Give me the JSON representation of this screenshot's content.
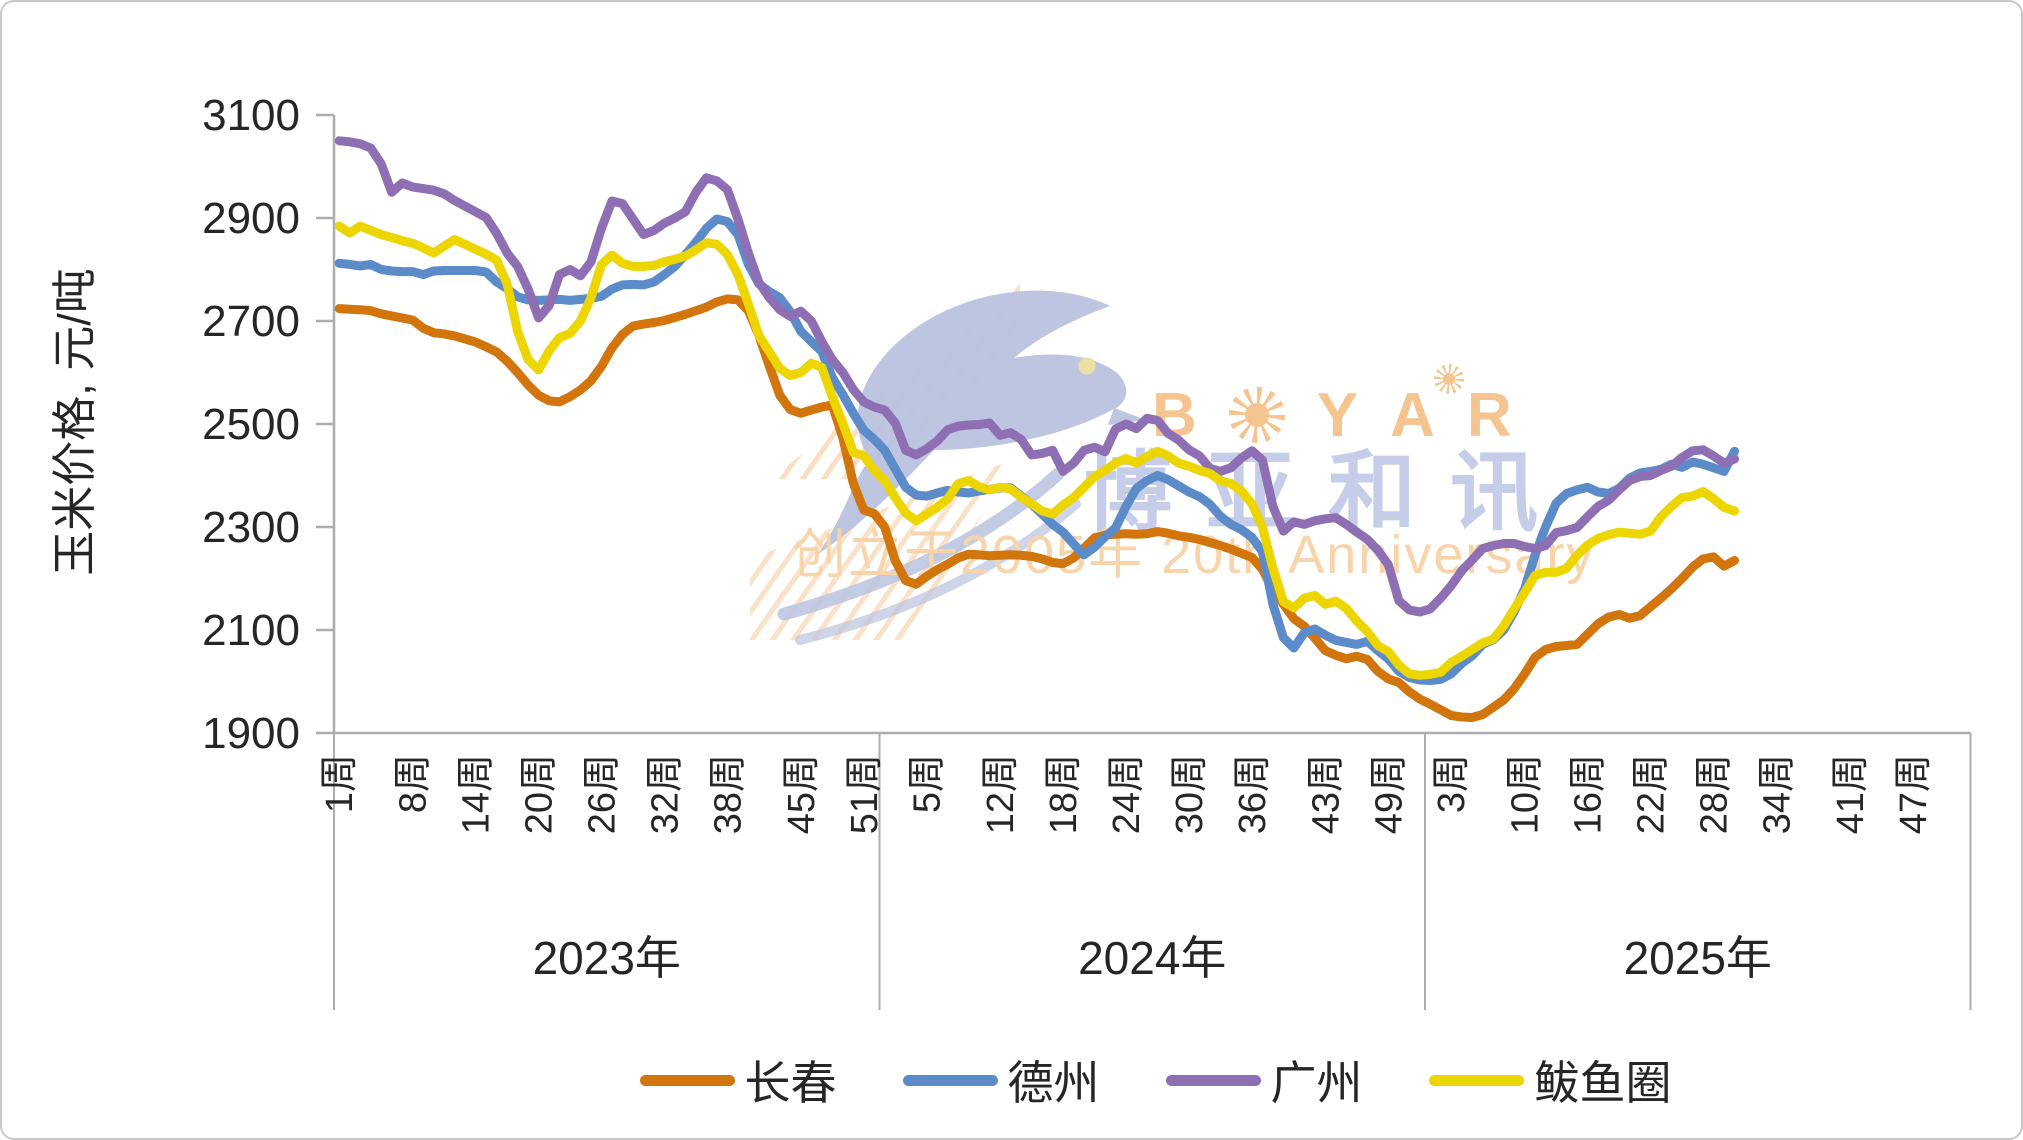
{
  "watermark": {
    "brand_first_letter": "B",
    "brand_rest_letters": [
      "Y",
      "A",
      "R"
    ],
    "brand": "BOYAR",
    "brand_cn": "博亚和讯",
    "tagline": "创立于2005年 20th Anniversary",
    "brand_color": "#f6c48f",
    "brand_cn_color": "#c6cde8",
    "tagline_color": "#f8d4ab",
    "bird_color": "#b9c2df"
  },
  "chart_data": {
    "type": "line",
    "title": "",
    "ylabel": "玉米价格, 元/吨",
    "xlabel": "",
    "ylim": [
      1900,
      3100
    ],
    "yticks": [
      1900,
      2100,
      2300,
      2500,
      2700,
      2900,
      3100
    ],
    "grid": false,
    "legend_position": "bottom",
    "week_label_suffix": "周",
    "x_groups": [
      {
        "year": "2023年",
        "weeks": 52,
        "tick_weeks": [
          1,
          8,
          14,
          20,
          26,
          32,
          38,
          45,
          51
        ]
      },
      {
        "year": "2024年",
        "weeks": 52,
        "tick_weeks": [
          5,
          12,
          18,
          24,
          30,
          36,
          43,
          49
        ]
      },
      {
        "year": "2025年",
        "weeks": 52,
        "tick_weeks": [
          3,
          10,
          16,
          22,
          28,
          34,
          41,
          47
        ]
      }
    ],
    "series": [
      {
        "name": "长春",
        "color": "#D2750C",
        "values": {
          "2023": [
            2724,
            2723,
            2722,
            2720,
            2714,
            2710,
            2706,
            2702,
            2686,
            2677,
            2675,
            2671,
            2665,
            2659,
            2650,
            2640,
            2622,
            2600,
            2576,
            2556,
            2545,
            2543,
            2553,
            2566,
            2584,
            2612,
            2648,
            2674,
            2690,
            2694,
            2697,
            2701,
            2707,
            2713,
            2720,
            2727,
            2737,
            2743,
            2741,
            2720,
            2672,
            2612,
            2556,
            2528,
            2521,
            2527,
            2533,
            2537,
            2473,
            2385,
            2333,
            2326
          ],
          "2024": [
            2300,
            2235,
            2196,
            2189,
            2204,
            2217,
            2228,
            2240,
            2247,
            2246,
            2244,
            2245,
            2246,
            2245,
            2243,
            2238,
            2231,
            2229,
            2240,
            2259,
            2279,
            2284,
            2286,
            2287,
            2286,
            2287,
            2291,
            2288,
            2283,
            2280,
            2276,
            2270,
            2264,
            2257,
            2249,
            2241,
            2218,
            2178,
            2150,
            2122,
            2107,
            2084,
            2060,
            2051,
            2044,
            2049,
            2043,
            2020,
            2005,
            1998,
            1980,
            1966
          ],
          "2025": [
            1956,
            1945,
            1934,
            1931,
            1930,
            1936,
            1950,
            1964,
            1986,
            2015,
            2047,
            2062,
            2068,
            2070,
            2072,
            2092,
            2112,
            2125,
            2130,
            2123,
            2128,
            2145,
            2162,
            2180,
            2200,
            2222,
            2238,
            2242,
            2224,
            2235
          ]
        }
      },
      {
        "name": "德州",
        "color": "#5C8BC9",
        "values": {
          "2023": [
            2812,
            2810,
            2807,
            2810,
            2800,
            2797,
            2796,
            2796,
            2790,
            2797,
            2798,
            2798,
            2798,
            2798,
            2795,
            2776,
            2763,
            2747,
            2741,
            2740,
            2741,
            2742,
            2740,
            2742,
            2744,
            2748,
            2762,
            2770,
            2771,
            2770,
            2776,
            2790,
            2806,
            2829,
            2853,
            2880,
            2898,
            2893,
            2868,
            2810,
            2772,
            2757,
            2745,
            2718,
            2680,
            2660,
            2641,
            2590,
            2557,
            2521,
            2488,
            2470
          ],
          "2024": [
            2449,
            2413,
            2377,
            2362,
            2360,
            2366,
            2371,
            2368,
            2366,
            2370,
            2373,
            2376,
            2376,
            2360,
            2344,
            2325,
            2305,
            2290,
            2267,
            2246,
            2261,
            2281,
            2298,
            2340,
            2375,
            2390,
            2400,
            2392,
            2380,
            2368,
            2359,
            2344,
            2321,
            2305,
            2295,
            2280,
            2252,
            2150,
            2085,
            2065,
            2095,
            2102,
            2090,
            2080,
            2076,
            2072,
            2078,
            2060,
            2044,
            2020,
            2008,
            2003
          ],
          "2025": [
            2002,
            2004,
            2015,
            2035,
            2050,
            2072,
            2081,
            2100,
            2136,
            2180,
            2246,
            2300,
            2346,
            2365,
            2372,
            2377,
            2368,
            2365,
            2375,
            2395,
            2405,
            2408,
            2412,
            2422,
            2416,
            2426,
            2422,
            2415,
            2408,
            2447
          ]
        }
      },
      {
        "name": "广州",
        "color": "#8E6FB4",
        "values": {
          "2023": [
            3050,
            3048,
            3044,
            3036,
            3005,
            2950,
            2968,
            2960,
            2957,
            2954,
            2947,
            2934,
            2923,
            2912,
            2901,
            2870,
            2832,
            2806,
            2762,
            2706,
            2730,
            2790,
            2800,
            2788,
            2815,
            2880,
            2933,
            2928,
            2898,
            2868,
            2876,
            2890,
            2900,
            2912,
            2950,
            2978,
            2972,
            2955,
            2898,
            2832,
            2775,
            2745,
            2722,
            2709,
            2719,
            2700,
            2660,
            2625,
            2600,
            2567,
            2543,
            2533
          ],
          "2024": [
            2527,
            2502,
            2449,
            2440,
            2452,
            2467,
            2489,
            2496,
            2498,
            2499,
            2502,
            2478,
            2483,
            2470,
            2440,
            2443,
            2449,
            2408,
            2424,
            2449,
            2455,
            2446,
            2490,
            2500,
            2491,
            2511,
            2507,
            2482,
            2469,
            2450,
            2438,
            2414,
            2408,
            2415,
            2434,
            2448,
            2430,
            2340,
            2292,
            2310,
            2305,
            2312,
            2316,
            2318,
            2305,
            2290,
            2276,
            2255,
            2227,
            2157,
            2139,
            2135
          ],
          "2025": [
            2141,
            2162,
            2186,
            2215,
            2236,
            2258,
            2264,
            2268,
            2268,
            2262,
            2258,
            2264,
            2289,
            2293,
            2299,
            2320,
            2340,
            2352,
            2372,
            2390,
            2398,
            2400,
            2410,
            2418,
            2435,
            2448,
            2450,
            2438,
            2424,
            2432
          ]
        }
      },
      {
        "name": "鲅鱼圈",
        "color": "#EDD500",
        "values": {
          "2023": [
            2884,
            2871,
            2884,
            2876,
            2868,
            2862,
            2856,
            2851,
            2842,
            2832,
            2845,
            2858,
            2849,
            2839,
            2830,
            2818,
            2772,
            2680,
            2625,
            2605,
            2642,
            2668,
            2676,
            2700,
            2745,
            2810,
            2828,
            2812,
            2806,
            2806,
            2808,
            2815,
            2820,
            2826,
            2838,
            2852,
            2849,
            2829,
            2790,
            2733,
            2672,
            2640,
            2608,
            2594,
            2600,
            2618,
            2610,
            2553,
            2502,
            2445,
            2438,
            2410
          ],
          "2024": [
            2390,
            2357,
            2327,
            2312,
            2325,
            2338,
            2355,
            2384,
            2390,
            2378,
            2372,
            2377,
            2374,
            2358,
            2345,
            2331,
            2325,
            2343,
            2357,
            2377,
            2398,
            2410,
            2424,
            2433,
            2424,
            2437,
            2447,
            2438,
            2424,
            2418,
            2410,
            2404,
            2390,
            2384,
            2370,
            2345,
            2300,
            2220,
            2155,
            2143,
            2162,
            2167,
            2150,
            2156,
            2142,
            2117,
            2097,
            2070,
            2058,
            2032,
            2015,
            2012
          ],
          "2025": [
            2014,
            2018,
            2037,
            2049,
            2062,
            2075,
            2082,
            2108,
            2141,
            2173,
            2206,
            2212,
            2212,
            2220,
            2245,
            2265,
            2278,
            2285,
            2290,
            2288,
            2286,
            2292,
            2320,
            2340,
            2357,
            2360,
            2369,
            2355,
            2338,
            2331
          ]
        }
      }
    ]
  }
}
